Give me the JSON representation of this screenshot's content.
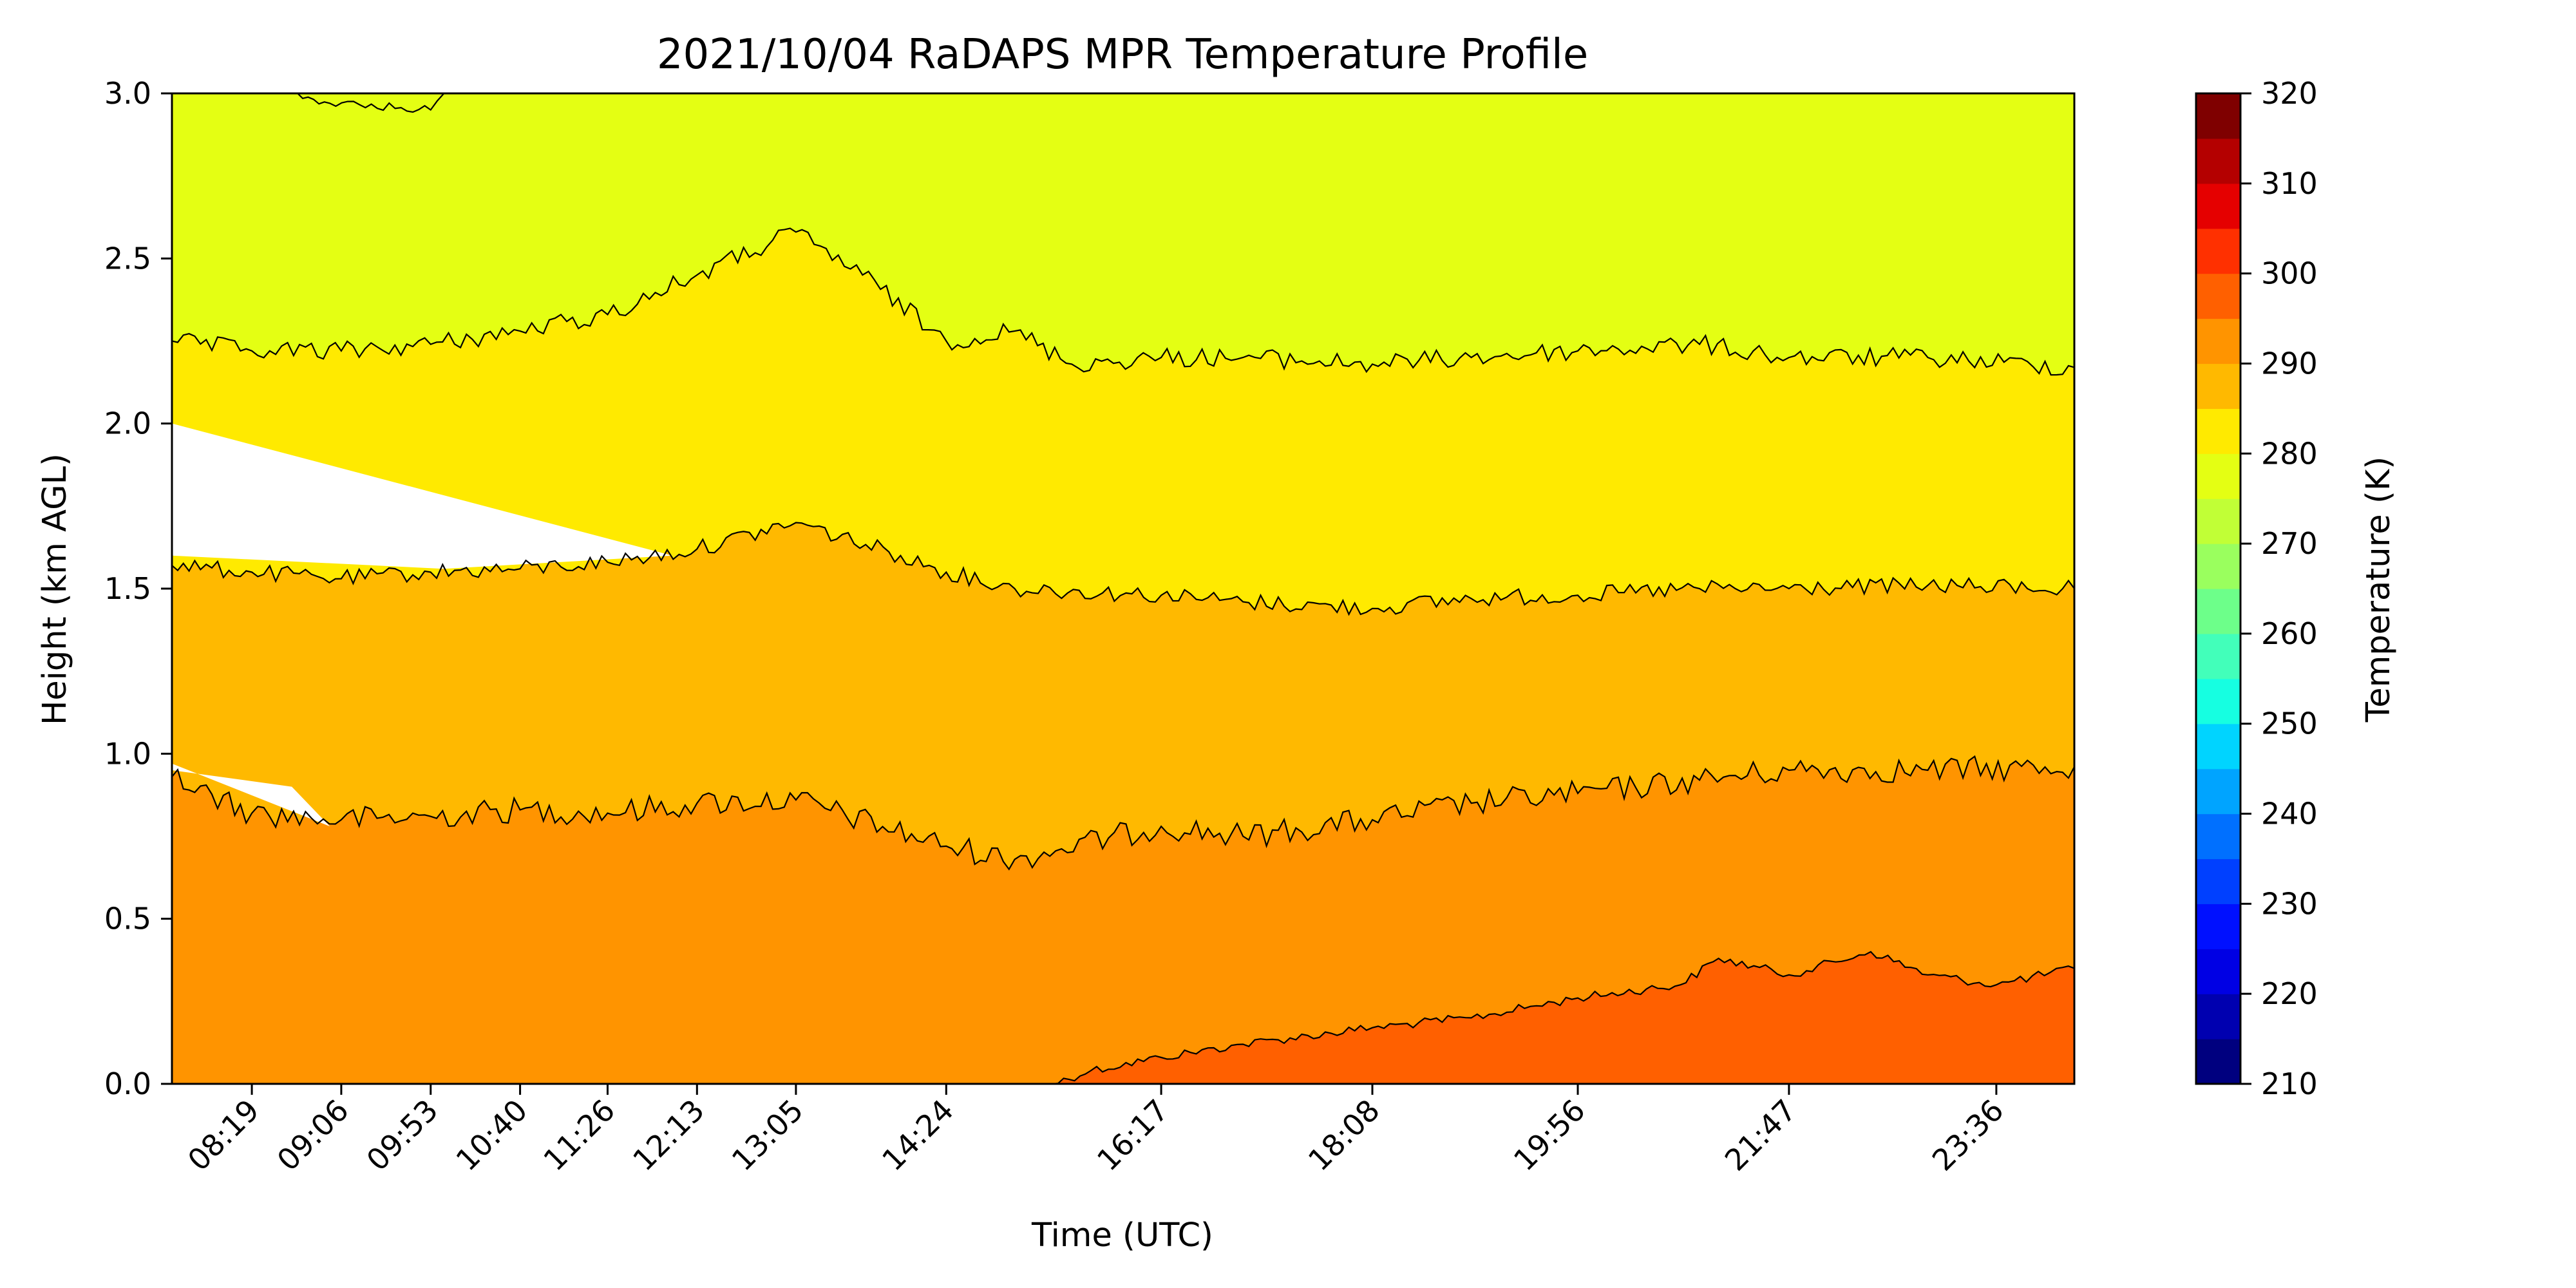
{
  "chart_data": {
    "type": "contour",
    "title": "2021/10/04 RaDAPS MPR Temperature Profile",
    "xlabel": "Time (UTC)",
    "ylabel": "Height (km AGL)",
    "xlim": [
      "07:37",
      "24:17"
    ],
    "ylim": [
      0.0,
      3.0
    ],
    "x_tick_labels": [
      "08:19",
      "09:06",
      "09:53",
      "10:40",
      "11:26",
      "12:13",
      "13:05",
      "14:24",
      "16:17",
      "18:08",
      "19:56",
      "21:47",
      "23:36"
    ],
    "y_tick_labels": [
      "0.0",
      "0.5",
      "1.0",
      "1.5",
      "2.0",
      "2.5",
      "3.0"
    ],
    "colorbar": {
      "label": "Temperature (K)",
      "min": 210,
      "max": 320,
      "step": 5,
      "tick_labels": [
        "210",
        "220",
        "230",
        "240",
        "250",
        "260",
        "270",
        "280",
        "290",
        "300",
        "310",
        "320"
      ],
      "colors": [
        "#00007f",
        "#0000b0",
        "#0000e4",
        "#0010ff",
        "#0040ff",
        "#0070ff",
        "#00a4ff",
        "#00d4ff",
        "#16ffe1",
        "#42ffba",
        "#6dff8a",
        "#9aff5e",
        "#c1ff36",
        "#e4ff13",
        "#ffea00",
        "#ffb900",
        "#ff9400",
        "#ff6000",
        "#ff3000",
        "#e50000",
        "#b40000",
        "#7f0000"
      ]
    },
    "temperature_bands_K": [
      {
        "range": [
          295,
          300
        ],
        "color": "#ff6000",
        "extent": "near surface, after ~15:30 UTC, top rising to ~0.4 km by 22:00"
      },
      {
        "range": [
          290,
          295
        ],
        "color": "#ff9400",
        "extent": "surface to ~0.85-0.95 km"
      },
      {
        "range": [
          285,
          290
        ],
        "color": "#ffb900",
        "extent": "~0.9 km to ~1.5-1.7 km"
      },
      {
        "range": [
          280,
          285
        ],
        "color": "#ffea00",
        "extent": "~1.5 km to ~2.2-2.6 km"
      },
      {
        "range": [
          275,
          280
        ],
        "color": "#e4ff13",
        "extent": "~2.2 km to 3.0 km"
      }
    ],
    "contours": [
      {
        "name": "300 K",
        "points": [
          [
            "15:20",
            0.0
          ],
          [
            "15:40",
            0.04
          ],
          [
            "16:17",
            0.08
          ],
          [
            "17:00",
            0.12
          ],
          [
            "18:08",
            0.17
          ],
          [
            "19:00",
            0.2
          ],
          [
            "19:56",
            0.26
          ],
          [
            "20:50",
            0.3
          ],
          [
            "21:10",
            0.38
          ],
          [
            "21:47",
            0.33
          ],
          [
            "22:30",
            0.4
          ],
          [
            "23:00",
            0.33
          ],
          [
            "23:36",
            0.3
          ],
          [
            "24:17",
            0.35
          ]
        ]
      },
      {
        "name": "295 K",
        "points": [
          [
            "07:37",
            0.93
          ],
          [
            "08:19",
            0.82
          ],
          [
            "09:06",
            0.8
          ],
          [
            "09:53",
            0.81
          ],
          [
            "10:40",
            0.83
          ],
          [
            "11:26",
            0.82
          ],
          [
            "12:13",
            0.85
          ],
          [
            "13:05",
            0.86
          ],
          [
            "14:24",
            0.72
          ],
          [
            "15:00",
            0.68
          ],
          [
            "16:17",
            0.78
          ],
          [
            "17:00",
            0.75
          ],
          [
            "18:08",
            0.8
          ],
          [
            "19:00",
            0.85
          ],
          [
            "19:56",
            0.88
          ],
          [
            "21:00",
            0.92
          ],
          [
            "21:47",
            0.95
          ],
          [
            "23:00",
            0.95
          ],
          [
            "24:17",
            0.96
          ]
        ]
      },
      {
        "name": "290 K",
        "points": [
          [
            "07:37",
            1.57
          ],
          [
            "08:19",
            1.55
          ],
          [
            "09:06",
            1.53
          ],
          [
            "09:53",
            1.55
          ],
          [
            "10:40",
            1.56
          ],
          [
            "11:26",
            1.58
          ],
          [
            "12:13",
            1.62
          ],
          [
            "13:05",
            1.7
          ],
          [
            "14:00",
            1.6
          ],
          [
            "14:24",
            1.55
          ],
          [
            "15:00",
            1.5
          ],
          [
            "16:17",
            1.48
          ],
          [
            "17:00",
            1.46
          ],
          [
            "18:08",
            1.44
          ],
          [
            "19:00",
            1.47
          ],
          [
            "19:56",
            1.48
          ],
          [
            "21:00",
            1.5
          ],
          [
            "21:47",
            1.5
          ],
          [
            "23:00",
            1.51
          ],
          [
            "24:17",
            1.5
          ]
        ]
      },
      {
        "name": "285 K",
        "points": [
          [
            "07:37",
            2.25
          ],
          [
            "08:19",
            2.22
          ],
          [
            "09:06",
            2.22
          ],
          [
            "09:53",
            2.24
          ],
          [
            "10:40",
            2.28
          ],
          [
            "11:26",
            2.33
          ],
          [
            "12:13",
            2.45
          ],
          [
            "13:05",
            2.58
          ],
          [
            "13:40",
            2.45
          ],
          [
            "14:24",
            2.25
          ],
          [
            "15:00",
            2.28
          ],
          [
            "15:30",
            2.18
          ],
          [
            "16:17",
            2.2
          ],
          [
            "17:00",
            2.2
          ],
          [
            "18:08",
            2.18
          ],
          [
            "19:00",
            2.2
          ],
          [
            "19:56",
            2.22
          ],
          [
            "21:00",
            2.24
          ],
          [
            "21:47",
            2.2
          ],
          [
            "23:00",
            2.2
          ],
          [
            "24:17",
            2.17
          ]
        ]
      },
      {
        "name": "280 K",
        "points": [
          [
            "08:40",
            3.0
          ],
          [
            "09:00",
            2.97
          ],
          [
            "09:53",
            2.95
          ],
          [
            "10:00",
            3.0
          ]
        ]
      }
    ],
    "missing_data_region": {
      "x": [
        "07:37",
        "12:00"
      ],
      "y_top_from": 2.0,
      "y_top_to": 1.6,
      "y_bottom_from": 1.6,
      "y_bottom_to": 1.58
    }
  }
}
